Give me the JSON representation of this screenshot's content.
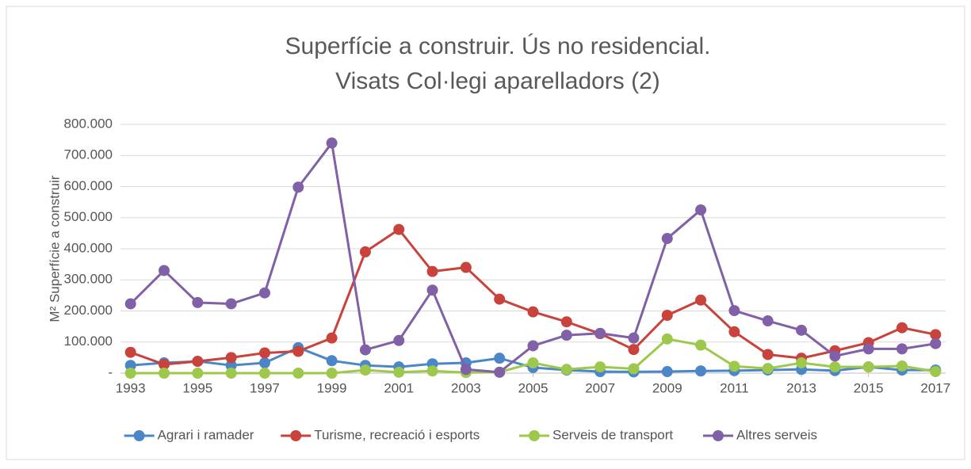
{
  "chart_data": {
    "type": "line",
    "title": [
      "Superfície a construir. Ús no residencial.",
      "Visats Col·legi aparelladors (2)"
    ],
    "y_label": "M²  Superfície a construir",
    "x": [
      1993,
      1994,
      1995,
      1996,
      1997,
      1998,
      1999,
      2000,
      2001,
      2002,
      2003,
      2004,
      2005,
      2006,
      2007,
      2008,
      2009,
      2010,
      2011,
      2012,
      2013,
      2014,
      2015,
      2016,
      2017
    ],
    "xlim": [
      1992.7,
      2017.3
    ],
    "xticks": [
      1993,
      1995,
      1997,
      1999,
      2001,
      2003,
      2005,
      2007,
      2009,
      2011,
      2013,
      2015,
      2017
    ],
    "ylim": [
      0,
      800000
    ],
    "yticks": [
      {
        "value": 0,
        "label": "-"
      },
      {
        "value": 100000,
        "label": "100.000"
      },
      {
        "value": 200000,
        "label": "200.000"
      },
      {
        "value": 300000,
        "label": "300.000"
      },
      {
        "value": 400000,
        "label": "400.000"
      },
      {
        "value": 500000,
        "label": "500.000"
      },
      {
        "value": 600000,
        "label": "600.000"
      },
      {
        "value": 700000,
        "label": "700.000"
      },
      {
        "value": 800000,
        "label": "800.000"
      }
    ],
    "grid": true,
    "legend": "bottom",
    "series": [
      {
        "name": "Agrari i ramader",
        "color": "#4a86c8",
        "values": [
          25000,
          33000,
          38000,
          25000,
          33000,
          82000,
          40000,
          25000,
          20000,
          30000,
          33000,
          48000,
          18000,
          10000,
          5000,
          4000,
          5000,
          7000,
          8000,
          10000,
          12000,
          8000,
          20000,
          10000,
          10000
        ]
      },
      {
        "name": "Turisme, recreació i esports",
        "color": "#c9423b",
        "values": [
          67000,
          28000,
          38000,
          50000,
          65000,
          70000,
          113000,
          390000,
          462000,
          327000,
          340000,
          238000,
          197000,
          165000,
          127000,
          76000,
          186000,
          235000,
          133000,
          60000,
          48000,
          72000,
          98000,
          146000,
          124000
        ]
      },
      {
        "name": "Serveis de transport",
        "color": "#9dc84b",
        "values": [
          0,
          0,
          0,
          0,
          0,
          0,
          0,
          10000,
          3000,
          7000,
          2000,
          3000,
          33000,
          12000,
          20000,
          14000,
          110000,
          90000,
          22000,
          15000,
          33000,
          20000,
          20000,
          23000,
          5000
        ]
      },
      {
        "name": "Altres serveis",
        "color": "#8060a6",
        "values": [
          223000,
          330000,
          227000,
          223000,
          258000,
          598000,
          740000,
          75000,
          105000,
          267000,
          12000,
          3000,
          88000,
          122000,
          128000,
          113000,
          433000,
          525000,
          201000,
          168000,
          138000,
          55000,
          78000,
          78000,
          95000
        ]
      }
    ]
  }
}
